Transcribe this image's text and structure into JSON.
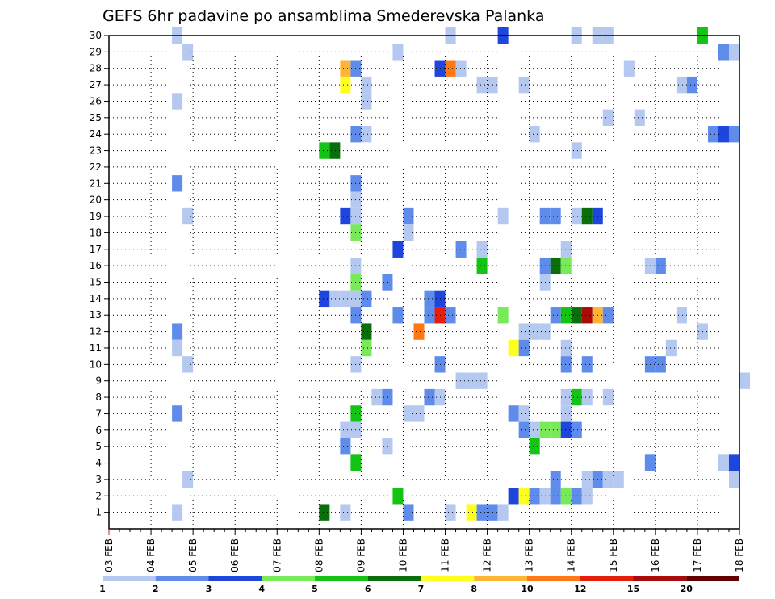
{
  "chart_data": {
    "type": "heatmap",
    "title": "GEFS 6hr padavine po ansamblima Smederevska Palanka",
    "xlabel": "",
    "ylabel": "",
    "x_start": "2025-02-03",
    "x_end": "2025-02-18",
    "x_tick_labels": [
      "03 FEB",
      "04 FEB",
      "05 FEB",
      "06 FEB",
      "07 FEB",
      "08 FEB",
      "09 FEB",
      "10 FEB",
      "11 FEB",
      "12 FEB",
      "13 FEB",
      "14 FEB",
      "15 FEB",
      "16 FEB",
      "17 FEB",
      "18 FEB"
    ],
    "y_tick_labels": [
      "1",
      "2",
      "3",
      "4",
      "5",
      "6",
      "7",
      "8",
      "9",
      "10",
      "11",
      "12",
      "13",
      "14",
      "15",
      "16",
      "17",
      "18",
      "19",
      "20",
      "21",
      "22",
      "23",
      "24",
      "25",
      "26",
      "27",
      "28",
      "29",
      "30"
    ],
    "grid": true,
    "legend": {
      "placement": "bottom",
      "labels": [
        "1",
        "2",
        "3",
        "4",
        "5",
        "6",
        "7",
        "8",
        "10",
        "12",
        "15",
        "20"
      ],
      "colors": [
        "#b4c8f0",
        "#5f8ceb",
        "#1e46dc",
        "#78ea5a",
        "#14c314",
        "#0a6e0a",
        "#ffff1e",
        "#ffb432",
        "#ff7814",
        "#e61e0a",
        "#aa0a0a",
        "#640000"
      ]
    },
    "colors": {
      "0": "#b4c8f0",
      "1": "#5f8ceb",
      "2": "#1e46dc",
      "3": "#78ea5a",
      "4": "#14c314",
      "5": "#0a6e0a",
      "6": "#ffff1e",
      "7": "#ffb432",
      "8": "#ff7814",
      "9": "#e61e0a",
      "10": "#aa0a0a",
      "11": "#640000"
    },
    "cells": [
      {
        "t": "2025-02-04T12",
        "m": 30,
        "c": 0
      },
      {
        "t": "2025-02-11T00",
        "m": 30,
        "c": 0
      },
      {
        "t": "2025-02-12T06",
        "m": 30,
        "c": 2
      },
      {
        "t": "2025-02-14T00",
        "m": 30,
        "c": 0
      },
      {
        "t": "2025-02-14T12",
        "m": 30,
        "c": 0
      },
      {
        "t": "2025-02-14T18",
        "m": 30,
        "c": 0
      },
      {
        "t": "2025-02-17T00",
        "m": 30,
        "c": 4
      },
      {
        "t": "2025-02-04T18",
        "m": 29,
        "c": 0
      },
      {
        "t": "2025-02-09T18",
        "m": 29,
        "c": 0
      },
      {
        "t": "2025-02-17T12",
        "m": 29,
        "c": 1
      },
      {
        "t": "2025-02-17T18",
        "m": 29,
        "c": 0
      },
      {
        "t": "2025-02-08T12",
        "m": 28,
        "c": 7
      },
      {
        "t": "2025-02-08T18",
        "m": 28,
        "c": 1
      },
      {
        "t": "2025-02-10T18",
        "m": 28,
        "c": 2
      },
      {
        "t": "2025-02-11T00",
        "m": 28,
        "c": 8
      },
      {
        "t": "2025-02-11T06",
        "m": 28,
        "c": 0
      },
      {
        "t": "2025-02-15T06",
        "m": 28,
        "c": 0
      },
      {
        "t": "2025-02-08T12",
        "m": 27,
        "c": 6
      },
      {
        "t": "2025-02-09T00",
        "m": 27,
        "c": 0
      },
      {
        "t": "2025-02-11T18",
        "m": 27,
        "c": 0
      },
      {
        "t": "2025-02-12T00",
        "m": 27,
        "c": 0
      },
      {
        "t": "2025-02-12T18",
        "m": 27,
        "c": 0
      },
      {
        "t": "2025-02-16T12",
        "m": 27,
        "c": 0
      },
      {
        "t": "2025-02-16T18",
        "m": 27,
        "c": 1
      },
      {
        "t": "2025-02-04T12",
        "m": 26,
        "c": 0
      },
      {
        "t": "2025-02-09T00",
        "m": 26,
        "c": 0
      },
      {
        "t": "2025-02-14T18",
        "m": 25,
        "c": 0
      },
      {
        "t": "2025-02-15T12",
        "m": 25,
        "c": 0
      },
      {
        "t": "2025-02-08T18",
        "m": 24,
        "c": 1
      },
      {
        "t": "2025-02-09T00",
        "m": 24,
        "c": 0
      },
      {
        "t": "2025-02-13T00",
        "m": 24,
        "c": 0
      },
      {
        "t": "2025-02-17T06",
        "m": 24,
        "c": 1
      },
      {
        "t": "2025-02-17T12",
        "m": 24,
        "c": 2
      },
      {
        "t": "2025-02-17T18",
        "m": 24,
        "c": 1
      },
      {
        "t": "2025-02-08T00",
        "m": 23,
        "c": 4
      },
      {
        "t": "2025-02-08T06",
        "m": 23,
        "c": 5
      },
      {
        "t": "2025-02-14T00",
        "m": 23,
        "c": 0
      },
      {
        "t": "2025-02-04T12",
        "m": 21,
        "c": 1
      },
      {
        "t": "2025-02-08T18",
        "m": 21,
        "c": 1
      },
      {
        "t": "2025-02-08T18",
        "m": 20,
        "c": 0
      },
      {
        "t": "2025-02-08T12",
        "m": 19,
        "c": 2
      },
      {
        "t": "2025-02-04T18",
        "m": 19,
        "c": 0
      },
      {
        "t": "2025-02-08T18",
        "m": 19,
        "c": 0
      },
      {
        "t": "2025-02-10T00",
        "m": 19,
        "c": 1
      },
      {
        "t": "2025-02-12T06",
        "m": 19,
        "c": 0
      },
      {
        "t": "2025-02-13T06",
        "m": 19,
        "c": 1
      },
      {
        "t": "2025-02-13T12",
        "m": 19,
        "c": 1
      },
      {
        "t": "2025-02-14T00",
        "m": 19,
        "c": 0
      },
      {
        "t": "2025-02-14T06",
        "m": 19,
        "c": 5
      },
      {
        "t": "2025-02-14T12",
        "m": 19,
        "c": 2
      },
      {
        "t": "2025-02-08T18",
        "m": 18,
        "c": 3
      },
      {
        "t": "2025-02-10T00",
        "m": 18,
        "c": 0
      },
      {
        "t": "2025-02-09T18",
        "m": 17,
        "c": 2
      },
      {
        "t": "2025-02-11T06",
        "m": 17,
        "c": 1
      },
      {
        "t": "2025-02-11T18",
        "m": 17,
        "c": 0
      },
      {
        "t": "2025-02-13T18",
        "m": 17,
        "c": 0
      },
      {
        "t": "2025-02-08T18",
        "m": 16,
        "c": 0
      },
      {
        "t": "2025-02-11T18",
        "m": 16,
        "c": 4
      },
      {
        "t": "2025-02-13T06",
        "m": 16,
        "c": 1
      },
      {
        "t": "2025-02-13T12",
        "m": 16,
        "c": 5
      },
      {
        "t": "2025-02-13T18",
        "m": 16,
        "c": 3
      },
      {
        "t": "2025-02-15T18",
        "m": 16,
        "c": 0
      },
      {
        "t": "2025-02-16T00",
        "m": 16,
        "c": 1
      },
      {
        "t": "2025-02-08T18",
        "m": 15,
        "c": 3
      },
      {
        "t": "2025-02-09T12",
        "m": 15,
        "c": 1
      },
      {
        "t": "2025-02-13T06",
        "m": 15,
        "c": 0
      },
      {
        "t": "2025-02-08T00",
        "m": 14,
        "c": 2
      },
      {
        "t": "2025-02-08T06",
        "m": 14,
        "c": 0
      },
      {
        "t": "2025-02-08T12",
        "m": 14,
        "c": 0
      },
      {
        "t": "2025-02-08T18",
        "m": 14,
        "c": 0
      },
      {
        "t": "2025-02-09T00",
        "m": 14,
        "c": 1
      },
      {
        "t": "2025-02-10T12",
        "m": 14,
        "c": 1
      },
      {
        "t": "2025-02-10T18",
        "m": 14,
        "c": 2
      },
      {
        "t": "2025-02-08T18",
        "m": 13,
        "c": 1
      },
      {
        "t": "2025-02-10T12",
        "m": 13,
        "c": 1
      },
      {
        "t": "2025-02-10T18",
        "m": 13,
        "c": 9
      },
      {
        "t": "2025-02-11T00",
        "m": 13,
        "c": 1
      },
      {
        "t": "2025-02-09T18",
        "m": 13,
        "c": 1
      },
      {
        "t": "2025-02-12T06",
        "m": 13,
        "c": 3
      },
      {
        "t": "2025-02-13T12",
        "m": 13,
        "c": 1
      },
      {
        "t": "2025-02-13T18",
        "m": 13,
        "c": 4
      },
      {
        "t": "2025-02-14T00",
        "m": 13,
        "c": 5
      },
      {
        "t": "2025-02-14T06",
        "m": 13,
        "c": 10
      },
      {
        "t": "2025-02-14T12",
        "m": 13,
        "c": 7
      },
      {
        "t": "2025-02-14T18",
        "m": 13,
        "c": 1
      },
      {
        "t": "2025-02-16T12",
        "m": 13,
        "c": 0
      },
      {
        "t": "2025-02-09T00",
        "m": 12,
        "c": 5
      },
      {
        "t": "2025-02-04T12",
        "m": 12,
        "c": 1
      },
      {
        "t": "2025-02-10T06",
        "m": 12,
        "c": 8
      },
      {
        "t": "2025-02-12T18",
        "m": 12,
        "c": 0
      },
      {
        "t": "2025-02-13T00",
        "m": 12,
        "c": 0
      },
      {
        "t": "2025-02-13T06",
        "m": 12,
        "c": 0
      },
      {
        "t": "2025-02-17T00",
        "m": 12,
        "c": 0
      },
      {
        "t": "2025-02-04T12",
        "m": 11,
        "c": 0
      },
      {
        "t": "2025-02-09T00",
        "m": 11,
        "c": 3
      },
      {
        "t": "2025-02-12T12",
        "m": 11,
        "c": 6
      },
      {
        "t": "2025-02-12T18",
        "m": 11,
        "c": 1
      },
      {
        "t": "2025-02-13T18",
        "m": 11,
        "c": 0
      },
      {
        "t": "2025-02-16T06",
        "m": 11,
        "c": 0
      },
      {
        "t": "2025-02-04T18",
        "m": 10,
        "c": 0
      },
      {
        "t": "2025-02-08T18",
        "m": 10,
        "c": 0
      },
      {
        "t": "2025-02-10T18",
        "m": 10,
        "c": 1
      },
      {
        "t": "2025-02-13T18",
        "m": 10,
        "c": 1
      },
      {
        "t": "2025-02-14T06",
        "m": 10,
        "c": 1
      },
      {
        "t": "2025-02-15T18",
        "m": 10,
        "c": 1
      },
      {
        "t": "2025-02-16T00",
        "m": 10,
        "c": 1
      },
      {
        "t": "2025-02-11T06",
        "m": 9,
        "c": 0
      },
      {
        "t": "2025-02-11T12",
        "m": 9,
        "c": 0
      },
      {
        "t": "2025-02-11T18",
        "m": 9,
        "c": 0
      },
      {
        "t": "2025-02-18T00",
        "m": 9,
        "c": 0
      },
      {
        "t": "2025-02-09T06",
        "m": 8,
        "c": 0
      },
      {
        "t": "2025-02-09T12",
        "m": 8,
        "c": 1
      },
      {
        "t": "2025-02-10T12",
        "m": 8,
        "c": 1
      },
      {
        "t": "2025-02-10T18",
        "m": 8,
        "c": 0
      },
      {
        "t": "2025-02-13T18",
        "m": 8,
        "c": 0
      },
      {
        "t": "2025-02-14T00",
        "m": 8,
        "c": 4
      },
      {
        "t": "2025-02-14T06",
        "m": 8,
        "c": 0
      },
      {
        "t": "2025-02-14T18",
        "m": 8,
        "c": 0
      },
      {
        "t": "2025-02-04T12",
        "m": 7,
        "c": 1
      },
      {
        "t": "2025-02-08T18",
        "m": 7,
        "c": 4
      },
      {
        "t": "2025-02-10T00",
        "m": 7,
        "c": 0
      },
      {
        "t": "2025-02-10T06",
        "m": 7,
        "c": 0
      },
      {
        "t": "2025-02-12T12",
        "m": 7,
        "c": 1
      },
      {
        "t": "2025-02-12T18",
        "m": 7,
        "c": 0
      },
      {
        "t": "2025-02-13T18",
        "m": 7,
        "c": 0
      },
      {
        "t": "2025-02-08T12",
        "m": 6,
        "c": 0
      },
      {
        "t": "2025-02-08T18",
        "m": 6,
        "c": 0
      },
      {
        "t": "2025-02-12T18",
        "m": 6,
        "c": 1
      },
      {
        "t": "2025-02-13T00",
        "m": 6,
        "c": 0
      },
      {
        "t": "2025-02-13T06",
        "m": 6,
        "c": 3
      },
      {
        "t": "2025-02-13T12",
        "m": 6,
        "c": 3
      },
      {
        "t": "2025-02-13T18",
        "m": 6,
        "c": 2
      },
      {
        "t": "2025-02-14T00",
        "m": 6,
        "c": 1
      },
      {
        "t": "2025-02-08T12",
        "m": 5,
        "c": 1
      },
      {
        "t": "2025-02-09T12",
        "m": 5,
        "c": 0
      },
      {
        "t": "2025-02-13T00",
        "m": 5,
        "c": 4
      },
      {
        "t": "2025-02-08T18",
        "m": 4,
        "c": 4
      },
      {
        "t": "2025-02-15T18",
        "m": 4,
        "c": 1
      },
      {
        "t": "2025-02-17T12",
        "m": 4,
        "c": 0
      },
      {
        "t": "2025-02-17T18",
        "m": 4,
        "c": 2
      },
      {
        "t": "2025-02-04T18",
        "m": 3,
        "c": 0
      },
      {
        "t": "2025-02-13T12",
        "m": 3,
        "c": 1
      },
      {
        "t": "2025-02-14T06",
        "m": 3,
        "c": 0
      },
      {
        "t": "2025-02-14T12",
        "m": 3,
        "c": 1
      },
      {
        "t": "2025-02-14T18",
        "m": 3,
        "c": 0
      },
      {
        "t": "2025-02-15T00",
        "m": 3,
        "c": 0
      },
      {
        "t": "2025-02-17T18",
        "m": 3,
        "c": 0
      },
      {
        "t": "2025-02-09T18",
        "m": 2,
        "c": 4
      },
      {
        "t": "2025-02-12T12",
        "m": 2,
        "c": 2
      },
      {
        "t": "2025-02-12T18",
        "m": 2,
        "c": 6
      },
      {
        "t": "2025-02-13T00",
        "m": 2,
        "c": 1
      },
      {
        "t": "2025-02-13T06",
        "m": 2,
        "c": 0
      },
      {
        "t": "2025-02-13T12",
        "m": 2,
        "c": 1
      },
      {
        "t": "2025-02-13T18",
        "m": 2,
        "c": 3
      },
      {
        "t": "2025-02-14T00",
        "m": 2,
        "c": 1
      },
      {
        "t": "2025-02-14T06",
        "m": 2,
        "c": 0
      },
      {
        "t": "2025-02-04T12",
        "m": 1,
        "c": 0
      },
      {
        "t": "2025-02-08T00",
        "m": 1,
        "c": 5
      },
      {
        "t": "2025-02-08T12",
        "m": 1,
        "c": 0
      },
      {
        "t": "2025-02-10T00",
        "m": 1,
        "c": 1
      },
      {
        "t": "2025-02-11T00",
        "m": 1,
        "c": 0
      },
      {
        "t": "2025-02-11T12",
        "m": 1,
        "c": 6
      },
      {
        "t": "2025-02-11T18",
        "m": 1,
        "c": 1
      },
      {
        "t": "2025-02-12T00",
        "m": 1,
        "c": 1
      },
      {
        "t": "2025-02-12T06",
        "m": 1,
        "c": 0
      }
    ]
  }
}
